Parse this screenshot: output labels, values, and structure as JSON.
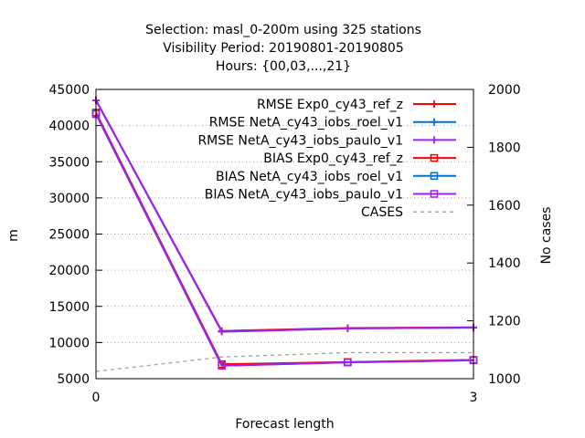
{
  "chart_data": {
    "type": "line",
    "title_lines": [
      "Selection: masl_0-200m using   325 stations",
      "Visibility   Period: 20190801-20190805",
      "Hours: {00,03,...,21}"
    ],
    "xlabel": "Forecast length",
    "ylabel": "m",
    "y2label": "No cases",
    "xlim": [
      0,
      3
    ],
    "ylim": [
      5000,
      45000
    ],
    "y2lim": [
      1000,
      2000
    ],
    "x_ticks": [
      "0",
      "3"
    ],
    "y_ticks": [
      5000,
      10000,
      15000,
      20000,
      25000,
      30000,
      35000,
      40000,
      45000
    ],
    "y2_ticks": [
      1000,
      1200,
      1400,
      1600,
      1800,
      2000
    ],
    "grid": true,
    "legend_position": "top-right",
    "x": [
      0,
      1,
      2,
      3
    ],
    "series": [
      {
        "name": "RMSE Exp0_cy43_ref_z",
        "axis": "y",
        "color": "#ff0000",
        "marker": "plus",
        "dash": false,
        "values": [
          43500,
          11600,
          12000,
          12100
        ]
      },
      {
        "name": "RMSE NetA_cy43_iobs_roel_v1",
        "axis": "y",
        "color": "#0072cf",
        "marker": "plus",
        "dash": false,
        "values": [
          43500,
          11500,
          11950,
          12050
        ]
      },
      {
        "name": "RMSE NetA_cy43_iobs_paulo_v1",
        "axis": "y",
        "color": "#a020f0",
        "marker": "plus",
        "dash": false,
        "values": [
          43500,
          11500,
          11950,
          12050
        ]
      },
      {
        "name": "BIAS Exp0_cy43_ref_z",
        "axis": "y",
        "color": "#ff0000",
        "marker": "square",
        "dash": false,
        "values": [
          41800,
          7000,
          7300,
          7600
        ]
      },
      {
        "name": "BIAS NetA_cy43_iobs_roel_v1",
        "axis": "y",
        "color": "#0072cf",
        "marker": "square",
        "dash": false,
        "values": [
          41600,
          6800,
          7250,
          7550
        ]
      },
      {
        "name": "BIAS NetA_cy43_iobs_paulo_v1",
        "axis": "y",
        "color": "#a020f0",
        "marker": "square",
        "dash": false,
        "values": [
          41600,
          6800,
          7250,
          7550
        ]
      },
      {
        "name": "CASES",
        "axis": "y2",
        "color": "#a0a0a0",
        "marker": "none",
        "dash": true,
        "values": [
          1025,
          1075,
          1090,
          1090
        ]
      }
    ]
  }
}
